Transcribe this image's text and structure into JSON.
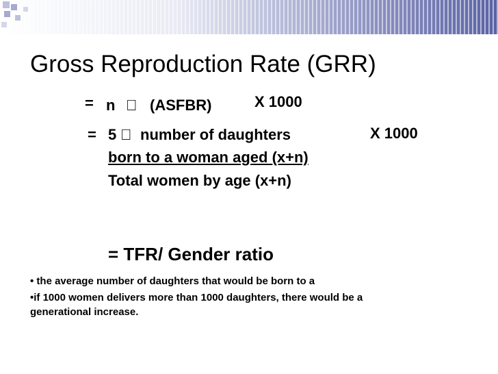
{
  "slide": {
    "title": "Gross Reproduction Rate (GRR)",
    "formula1": {
      "equals": "=",
      "n": "n",
      "symbol": "",
      "asfbr": "(ASFBR)",
      "multiplier": "X 1000"
    },
    "formula2": {
      "equals": "=",
      "five": "5",
      "symbol": "",
      "numerator_line1": "number of daughters",
      "numerator_line2": "born to a woman aged (x+n)",
      "denominator": "Total women by age (x+n)",
      "multiplier": "X 1000"
    },
    "formula3": "=  TFR/ Gender ratio",
    "notes": [
      "• the average number of daughters that would be born to a",
      "•if 1000 women delivers more than 1000 daughters, there would be a",
      "generational increase."
    ]
  }
}
